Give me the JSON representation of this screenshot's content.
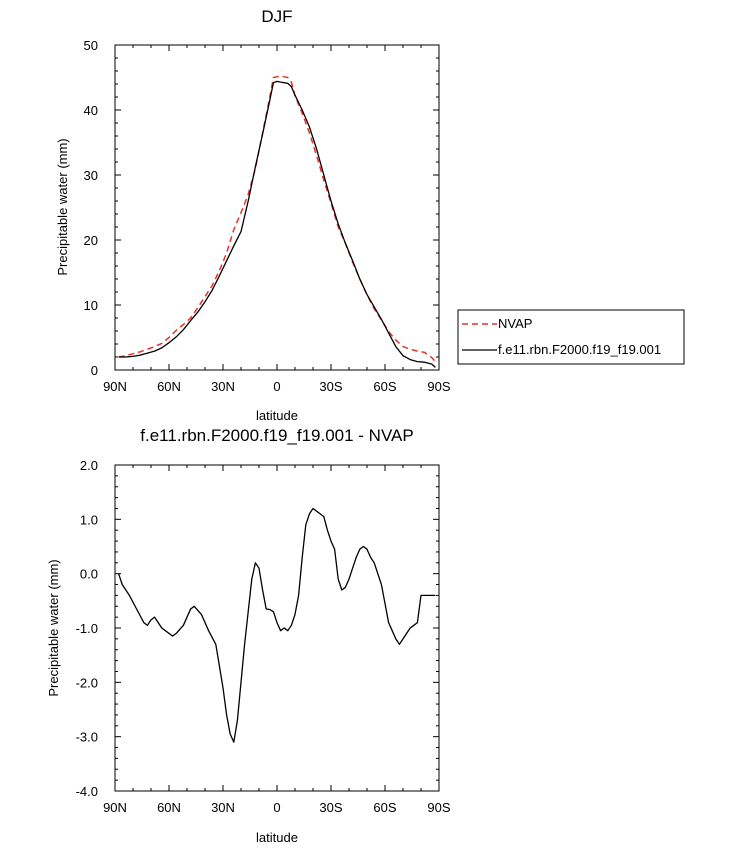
{
  "chart_data": [
    {
      "type": "line",
      "title": "DJF",
      "xlabel": "latitude",
      "ylabel": "Precipitable water (mm)",
      "xlim": [
        90,
        -90
      ],
      "ylim": [
        0,
        50
      ],
      "xticks": [
        90,
        60,
        30,
        0,
        -30,
        -60,
        -90
      ],
      "xtick_labels": [
        "90N",
        "60N",
        "30N",
        "0",
        "30S",
        "60S",
        "90S"
      ],
      "yticks": [
        0,
        10,
        20,
        30,
        40,
        50
      ],
      "ytick_labels": [
        "0",
        "10",
        "20",
        "30",
        "40",
        "50"
      ],
      "legend_position": "right",
      "series": [
        {
          "name": "NVAP",
          "color": "#e8312a",
          "dash": "dashed",
          "x": [
            88,
            84,
            80,
            76,
            72,
            68,
            64,
            60,
            56,
            52,
            48,
            44,
            40,
            36,
            32,
            28,
            24,
            20,
            16,
            12,
            8,
            4,
            2,
            0,
            -2,
            -4,
            -6,
            -8,
            -10,
            -14,
            -18,
            -22,
            -26,
            -30,
            -34,
            -38,
            -42,
            -46,
            -50,
            -54,
            -58,
            -62,
            -66,
            -70,
            -74,
            -78,
            -82,
            -86,
            -88
          ],
          "y": [
            2.0,
            2.2,
            2.5,
            2.8,
            3.2,
            3.6,
            4.1,
            5.0,
            6.1,
            7.0,
            8.0,
            9.6,
            11.3,
            13.0,
            15.3,
            18.0,
            21.6,
            24.2,
            27.0,
            31.0,
            36.5,
            42.0,
            45.0,
            45.1,
            45.2,
            45.1,
            45.0,
            44.3,
            42.2,
            39.5,
            36.5,
            33.0,
            29.2,
            25.7,
            22.0,
            19.5,
            16.6,
            14.0,
            11.6,
            9.4,
            7.7,
            5.9,
            4.6,
            3.6,
            3.2,
            2.9,
            2.7,
            1.9,
            1.3
          ]
        },
        {
          "name": "f.e11.rbn.F2000.f19_f19.001",
          "color": "#000000",
          "dash": "solid",
          "x": [
            88,
            84,
            80,
            76,
            72,
            68,
            64,
            60,
            56,
            52,
            48,
            44,
            40,
            36,
            32,
            28,
            24,
            20,
            16,
            12,
            8,
            4,
            2,
            0,
            -2,
            -4,
            -6,
            -8,
            -10,
            -14,
            -18,
            -22,
            -26,
            -30,
            -34,
            -38,
            -42,
            -46,
            -50,
            -54,
            -58,
            -62,
            -66,
            -70,
            -74,
            -78,
            -82,
            -86,
            -88
          ],
          "y": [
            2.0,
            2.0,
            2.1,
            2.3,
            2.6,
            2.9,
            3.4,
            4.2,
            5.1,
            6.2,
            7.6,
            8.9,
            10.5,
            12.3,
            14.5,
            16.8,
            19.1,
            21.3,
            26.0,
            31.3,
            36.3,
            41.5,
            44.2,
            44.4,
            44.3,
            44.2,
            44.1,
            43.6,
            42.3,
            40.0,
            37.4,
            34.0,
            30.0,
            26.0,
            22.5,
            19.5,
            16.8,
            14.0,
            11.6,
            9.7,
            7.8,
            5.7,
            3.6,
            2.2,
            1.6,
            1.3,
            1.2,
            0.9,
            0.4
          ]
        }
      ]
    },
    {
      "type": "line",
      "title": "f.e11.rbn.F2000.f19_f19.001 - NVAP",
      "xlabel": "latitude",
      "ylabel": "Precipitable water (mm)",
      "xlim": [
        90,
        -90
      ],
      "ylim": [
        -4.0,
        2.0
      ],
      "xticks": [
        90,
        60,
        30,
        0,
        -30,
        -60,
        -90
      ],
      "xtick_labels": [
        "90N",
        "60N",
        "30N",
        "0",
        "30S",
        "60S",
        "90S"
      ],
      "yticks": [
        2.0,
        1.0,
        0.0,
        -1.0,
        -2.0,
        -3.0,
        -4.0
      ],
      "ytick_labels": [
        "2.0",
        "1.0",
        "0.0",
        "-1.0",
        "-2.0",
        "-3.0",
        "-4.0"
      ],
      "series": [
        {
          "color": "#000000",
          "dash": "solid",
          "x": [
            88,
            86,
            82,
            78,
            74,
            72,
            70,
            68,
            66,
            64,
            62,
            58,
            56,
            52,
            48,
            46,
            42,
            38,
            34,
            32,
            30,
            28,
            26,
            24,
            22,
            20,
            18,
            14,
            12,
            10,
            8,
            6,
            4,
            2,
            0,
            -2,
            -4,
            -6,
            -8,
            -10,
            -12,
            -14,
            -16,
            -18,
            -20,
            -22,
            -24,
            -26,
            -28,
            -30,
            -32,
            -34,
            -36,
            -38,
            -40,
            -42,
            -44,
            -46,
            -48,
            -50,
            -52,
            -54,
            -56,
            -58,
            -60,
            -62,
            -64,
            -66,
            -68,
            -70,
            -72,
            -74,
            -76,
            -78,
            -80,
            -82,
            -84,
            -86,
            -88
          ],
          "y": [
            0.0,
            -0.2,
            -0.4,
            -0.65,
            -0.9,
            -0.95,
            -0.85,
            -0.8,
            -0.9,
            -1.0,
            -1.05,
            -1.15,
            -1.1,
            -0.95,
            -0.65,
            -0.6,
            -0.75,
            -1.05,
            -1.3,
            -1.7,
            -2.1,
            -2.6,
            -2.95,
            -3.1,
            -2.7,
            -2.0,
            -1.3,
            -0.1,
            0.2,
            0.1,
            -0.3,
            -0.65,
            -0.66,
            -0.7,
            -0.9,
            -1.05,
            -1.0,
            -1.05,
            -0.95,
            -0.75,
            -0.4,
            0.3,
            0.9,
            1.1,
            1.2,
            1.15,
            1.1,
            1.05,
            0.8,
            0.6,
            0.45,
            -0.1,
            -0.3,
            -0.25,
            -0.1,
            0.1,
            0.3,
            0.45,
            0.5,
            0.45,
            0.3,
            0.2,
            0.0,
            -0.2,
            -0.55,
            -0.9,
            -1.05,
            -1.2,
            -1.3,
            -1.2,
            -1.1,
            -1.0,
            -0.95,
            -0.9,
            -0.4,
            -0.4,
            -0.4,
            -0.4,
            -0.4
          ]
        }
      ]
    }
  ]
}
